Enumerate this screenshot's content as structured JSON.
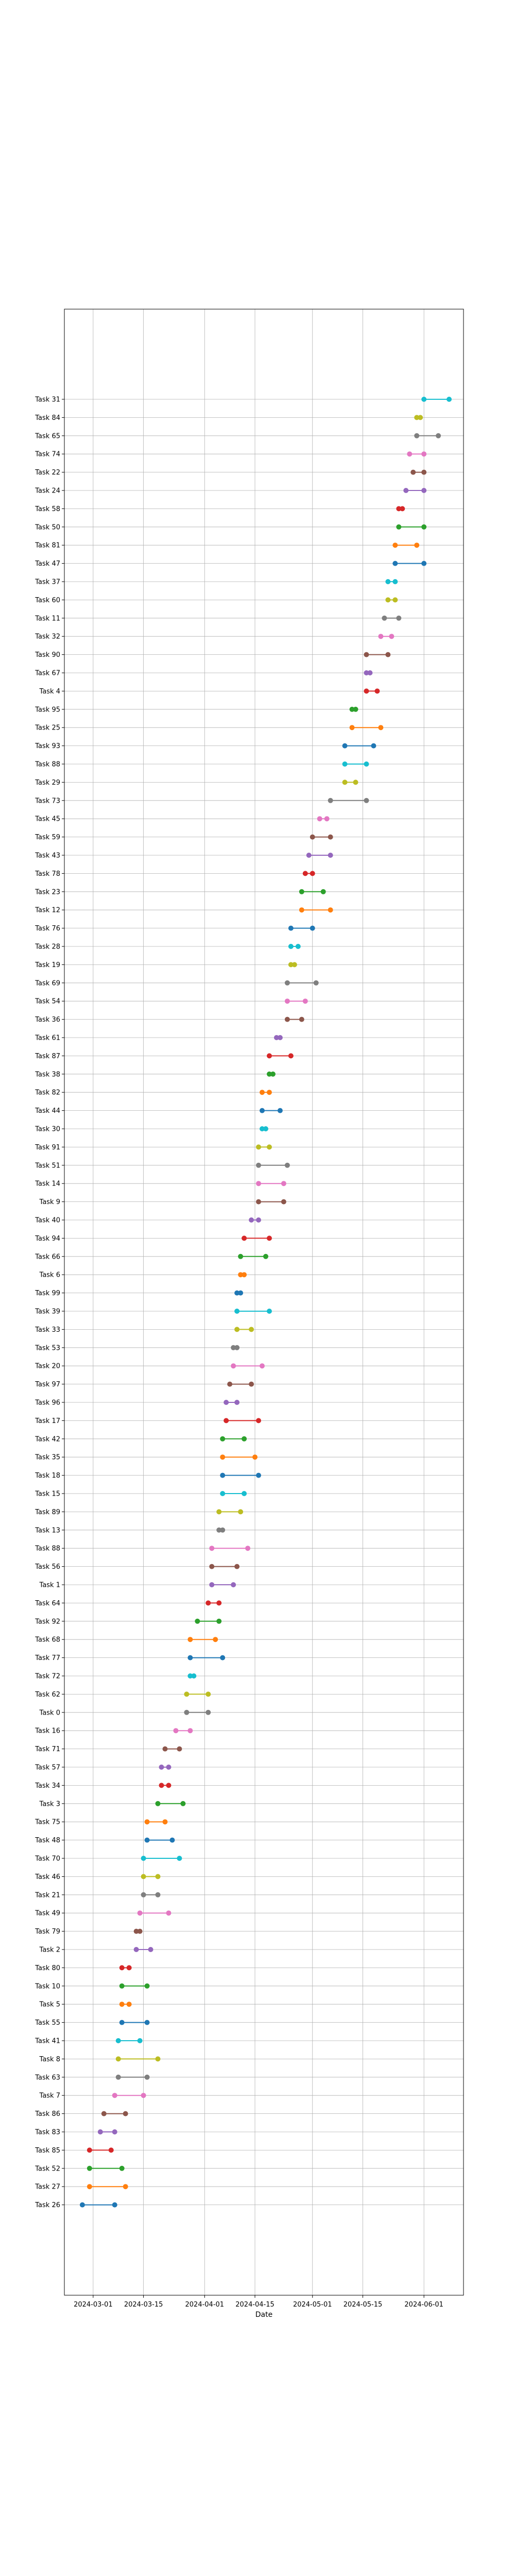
{
  "chart_data": {
    "type": "dumbbell",
    "title": "",
    "xlabel": "Date",
    "ylabel": "",
    "grid": true,
    "xlim": [
      "2024-02-22",
      "2024-06-12"
    ],
    "x_ticks": [
      "2024-03-01",
      "2024-03-15",
      "2024-04-01",
      "2024-04-15",
      "2024-05-01",
      "2024-05-15",
      "2024-06-01"
    ],
    "tasks": [
      {
        "name": "Task 31",
        "start": "2024-06-01",
        "end": "2024-06-08",
        "color": "#17becf"
      },
      {
        "name": "Task 84",
        "start": "2024-05-30",
        "end": "2024-05-31",
        "color": "#bcbd22"
      },
      {
        "name": "Task 65",
        "start": "2024-05-30",
        "end": "2024-06-05",
        "color": "#7f7f7f"
      },
      {
        "name": "Task 74",
        "start": "2024-05-28",
        "end": "2024-06-01",
        "color": "#e377c2"
      },
      {
        "name": "Task 22",
        "start": "2024-05-29",
        "end": "2024-06-01",
        "color": "#8c564b"
      },
      {
        "name": "Task 24",
        "start": "2024-05-27",
        "end": "2024-06-01",
        "color": "#9467bd"
      },
      {
        "name": "Task 58",
        "start": "2024-05-25",
        "end": "2024-05-26",
        "color": "#d62728"
      },
      {
        "name": "Task 50",
        "start": "2024-05-25",
        "end": "2024-06-01",
        "color": "#2ca02c"
      },
      {
        "name": "Task 81",
        "start": "2024-05-24",
        "end": "2024-05-30",
        "color": "#ff7f0e"
      },
      {
        "name": "Task 47",
        "start": "2024-05-24",
        "end": "2024-06-01",
        "color": "#1f77b4"
      },
      {
        "name": "Task 37",
        "start": "2024-05-22",
        "end": "2024-05-24",
        "color": "#17becf"
      },
      {
        "name": "Task 60",
        "start": "2024-05-22",
        "end": "2024-05-24",
        "color": "#bcbd22"
      },
      {
        "name": "Task 11",
        "start": "2024-05-21",
        "end": "2024-05-25",
        "color": "#7f7f7f"
      },
      {
        "name": "Task 32",
        "start": "2024-05-20",
        "end": "2024-05-23",
        "color": "#e377c2"
      },
      {
        "name": "Task 90",
        "start": "2024-05-16",
        "end": "2024-05-22",
        "color": "#8c564b"
      },
      {
        "name": "Task 67",
        "start": "2024-05-16",
        "end": "2024-05-17",
        "color": "#9467bd"
      },
      {
        "name": "Task 4",
        "start": "2024-05-16",
        "end": "2024-05-19",
        "color": "#d62728"
      },
      {
        "name": "Task 95",
        "start": "2024-05-12",
        "end": "2024-05-13",
        "color": "#2ca02c"
      },
      {
        "name": "Task 25",
        "start": "2024-05-12",
        "end": "2024-05-20",
        "color": "#ff7f0e"
      },
      {
        "name": "Task 93",
        "start": "2024-05-10",
        "end": "2024-05-18",
        "color": "#1f77b4"
      },
      {
        "name": "Task 88",
        "start": "2024-05-10",
        "end": "2024-05-16",
        "color": "#17becf"
      },
      {
        "name": "Task 29",
        "start": "2024-05-10",
        "end": "2024-05-13",
        "color": "#bcbd22"
      },
      {
        "name": "Task 73",
        "start": "2024-05-06",
        "end": "2024-05-16",
        "color": "#7f7f7f"
      },
      {
        "name": "Task 45",
        "start": "2024-05-03",
        "end": "2024-05-05",
        "color": "#e377c2"
      },
      {
        "name": "Task 59",
        "start": "2024-05-01",
        "end": "2024-05-06",
        "color": "#8c564b"
      },
      {
        "name": "Task 43",
        "start": "2024-04-30",
        "end": "2024-05-06",
        "color": "#9467bd"
      },
      {
        "name": "Task 78",
        "start": "2024-04-29",
        "end": "2024-05-01",
        "color": "#d62728"
      },
      {
        "name": "Task 23",
        "start": "2024-04-28",
        "end": "2024-05-04",
        "color": "#2ca02c"
      },
      {
        "name": "Task 12",
        "start": "2024-04-28",
        "end": "2024-05-06",
        "color": "#ff7f0e"
      },
      {
        "name": "Task 76",
        "start": "2024-04-25",
        "end": "2024-05-01",
        "color": "#1f77b4"
      },
      {
        "name": "Task 28",
        "start": "2024-04-25",
        "end": "2024-04-27",
        "color": "#17becf"
      },
      {
        "name": "Task 19",
        "start": "2024-04-25",
        "end": "2024-04-26",
        "color": "#bcbd22"
      },
      {
        "name": "Task 69",
        "start": "2024-04-24",
        "end": "2024-05-02",
        "color": "#7f7f7f"
      },
      {
        "name": "Task 54",
        "start": "2024-04-24",
        "end": "2024-04-29",
        "color": "#e377c2"
      },
      {
        "name": "Task 36",
        "start": "2024-04-24",
        "end": "2024-04-28",
        "color": "#8c564b"
      },
      {
        "name": "Task 61",
        "start": "2024-04-21",
        "end": "2024-04-22",
        "color": "#9467bd"
      },
      {
        "name": "Task 87",
        "start": "2024-04-19",
        "end": "2024-04-25",
        "color": "#d62728"
      },
      {
        "name": "Task 38",
        "start": "2024-04-19",
        "end": "2024-04-20",
        "color": "#2ca02c"
      },
      {
        "name": "Task 82",
        "start": "2024-04-17",
        "end": "2024-04-19",
        "color": "#ff7f0e"
      },
      {
        "name": "Task 44",
        "start": "2024-04-17",
        "end": "2024-04-22",
        "color": "#1f77b4"
      },
      {
        "name": "Task 30",
        "start": "2024-04-17",
        "end": "2024-04-18",
        "color": "#17becf"
      },
      {
        "name": "Task 91",
        "start": "2024-04-16",
        "end": "2024-04-19",
        "color": "#bcbd22"
      },
      {
        "name": "Task 51",
        "start": "2024-04-16",
        "end": "2024-04-24",
        "color": "#7f7f7f"
      },
      {
        "name": "Task 14",
        "start": "2024-04-16",
        "end": "2024-04-23",
        "color": "#e377c2"
      },
      {
        "name": "Task 9",
        "start": "2024-04-16",
        "end": "2024-04-23",
        "color": "#8c564b"
      },
      {
        "name": "Task 40",
        "start": "2024-04-14",
        "end": "2024-04-16",
        "color": "#9467bd"
      },
      {
        "name": "Task 94",
        "start": "2024-04-12",
        "end": "2024-04-19",
        "color": "#d62728"
      },
      {
        "name": "Task 66",
        "start": "2024-04-11",
        "end": "2024-04-18",
        "color": "#2ca02c"
      },
      {
        "name": "Task 6",
        "start": "2024-04-11",
        "end": "2024-04-12",
        "color": "#ff7f0e"
      },
      {
        "name": "Task 99",
        "start": "2024-04-10",
        "end": "2024-04-11",
        "color": "#1f77b4"
      },
      {
        "name": "Task 39",
        "start": "2024-04-10",
        "end": "2024-04-19",
        "color": "#17becf"
      },
      {
        "name": "Task 33",
        "start": "2024-04-10",
        "end": "2024-04-14",
        "color": "#bcbd22"
      },
      {
        "name": "Task 53",
        "start": "2024-04-09",
        "end": "2024-04-10",
        "color": "#7f7f7f"
      },
      {
        "name": "Task 20",
        "start": "2024-04-09",
        "end": "2024-04-17",
        "color": "#e377c2"
      },
      {
        "name": "Task 97",
        "start": "2024-04-08",
        "end": "2024-04-14",
        "color": "#8c564b"
      },
      {
        "name": "Task 96",
        "start": "2024-04-07",
        "end": "2024-04-10",
        "color": "#9467bd"
      },
      {
        "name": "Task 17",
        "start": "2024-04-07",
        "end": "2024-04-16",
        "color": "#d62728"
      },
      {
        "name": "Task 42",
        "start": "2024-04-06",
        "end": "2024-04-12",
        "color": "#2ca02c"
      },
      {
        "name": "Task 35",
        "start": "2024-04-06",
        "end": "2024-04-15",
        "color": "#ff7f0e"
      },
      {
        "name": "Task 18",
        "start": "2024-04-06",
        "end": "2024-04-16",
        "color": "#1f77b4"
      },
      {
        "name": "Task 15",
        "start": "2024-04-06",
        "end": "2024-04-12",
        "color": "#17becf"
      },
      {
        "name": "Task 89",
        "start": "2024-04-05",
        "end": "2024-04-11",
        "color": "#bcbd22"
      },
      {
        "name": "Task 13",
        "start": "2024-04-05",
        "end": "2024-04-06",
        "color": "#7f7f7f"
      },
      {
        "name": "Task 88",
        "start": "2024-04-03",
        "end": "2024-04-13",
        "color": "#e377c2"
      },
      {
        "name": "Task 56",
        "start": "2024-04-03",
        "end": "2024-04-10",
        "color": "#8c564b"
      },
      {
        "name": "Task 1",
        "start": "2024-04-03",
        "end": "2024-04-09",
        "color": "#9467bd"
      },
      {
        "name": "Task 64",
        "start": "2024-04-02",
        "end": "2024-04-05",
        "color": "#d62728"
      },
      {
        "name": "Task 92",
        "start": "2024-03-30",
        "end": "2024-04-05",
        "color": "#2ca02c"
      },
      {
        "name": "Task 68",
        "start": "2024-03-28",
        "end": "2024-04-04",
        "color": "#ff7f0e"
      },
      {
        "name": "Task 77",
        "start": "2024-03-28",
        "end": "2024-04-06",
        "color": "#1f77b4"
      },
      {
        "name": "Task 72",
        "start": "2024-03-28",
        "end": "2024-03-29",
        "color": "#17becf"
      },
      {
        "name": "Task 62",
        "start": "2024-03-27",
        "end": "2024-04-02",
        "color": "#bcbd22"
      },
      {
        "name": "Task 0",
        "start": "2024-03-27",
        "end": "2024-04-02",
        "color": "#7f7f7f"
      },
      {
        "name": "Task 16",
        "start": "2024-03-24",
        "end": "2024-03-28",
        "color": "#e377c2"
      },
      {
        "name": "Task 71",
        "start": "2024-03-21",
        "end": "2024-03-25",
        "color": "#8c564b"
      },
      {
        "name": "Task 57",
        "start": "2024-03-20",
        "end": "2024-03-22",
        "color": "#9467bd"
      },
      {
        "name": "Task 34",
        "start": "2024-03-20",
        "end": "2024-03-22",
        "color": "#d62728"
      },
      {
        "name": "Task 3",
        "start": "2024-03-19",
        "end": "2024-03-26",
        "color": "#2ca02c"
      },
      {
        "name": "Task 75",
        "start": "2024-03-16",
        "end": "2024-03-21",
        "color": "#ff7f0e"
      },
      {
        "name": "Task 48",
        "start": "2024-03-16",
        "end": "2024-03-23",
        "color": "#1f77b4"
      },
      {
        "name": "Task 70",
        "start": "2024-03-15",
        "end": "2024-03-25",
        "color": "#17becf"
      },
      {
        "name": "Task 46",
        "start": "2024-03-15",
        "end": "2024-03-19",
        "color": "#bcbd22"
      },
      {
        "name": "Task 21",
        "start": "2024-03-15",
        "end": "2024-03-19",
        "color": "#7f7f7f"
      },
      {
        "name": "Task 49",
        "start": "2024-03-14",
        "end": "2024-03-22",
        "color": "#e377c2"
      },
      {
        "name": "Task 79",
        "start": "2024-03-13",
        "end": "2024-03-14",
        "color": "#8c564b"
      },
      {
        "name": "Task 2",
        "start": "2024-03-13",
        "end": "2024-03-17",
        "color": "#9467bd"
      },
      {
        "name": "Task 80",
        "start": "2024-03-09",
        "end": "2024-03-11",
        "color": "#d62728"
      },
      {
        "name": "Task 10",
        "start": "2024-03-09",
        "end": "2024-03-16",
        "color": "#2ca02c"
      },
      {
        "name": "Task 5",
        "start": "2024-03-09",
        "end": "2024-03-11",
        "color": "#ff7f0e"
      },
      {
        "name": "Task 55",
        "start": "2024-03-09",
        "end": "2024-03-16",
        "color": "#1f77b4"
      },
      {
        "name": "Task 41",
        "start": "2024-03-08",
        "end": "2024-03-14",
        "color": "#17becf"
      },
      {
        "name": "Task 8",
        "start": "2024-03-08",
        "end": "2024-03-19",
        "color": "#bcbd22"
      },
      {
        "name": "Task 63",
        "start": "2024-03-08",
        "end": "2024-03-16",
        "color": "#7f7f7f"
      },
      {
        "name": "Task 7",
        "start": "2024-03-07",
        "end": "2024-03-15",
        "color": "#e377c2"
      },
      {
        "name": "Task 86",
        "start": "2024-03-04",
        "end": "2024-03-10",
        "color": "#8c564b"
      },
      {
        "name": "Task 83",
        "start": "2024-03-03",
        "end": "2024-03-07",
        "color": "#9467bd"
      },
      {
        "name": "Task 85",
        "start": "2024-02-29",
        "end": "2024-03-06",
        "color": "#d62728"
      },
      {
        "name": "Task 52",
        "start": "2024-02-29",
        "end": "2024-03-09",
        "color": "#2ca02c"
      },
      {
        "name": "Task 27",
        "start": "2024-02-29",
        "end": "2024-03-10",
        "color": "#ff7f0e"
      },
      {
        "name": "Task 26",
        "start": "2024-02-27",
        "end": "2024-03-07",
        "color": "#1f77b4"
      }
    ]
  }
}
